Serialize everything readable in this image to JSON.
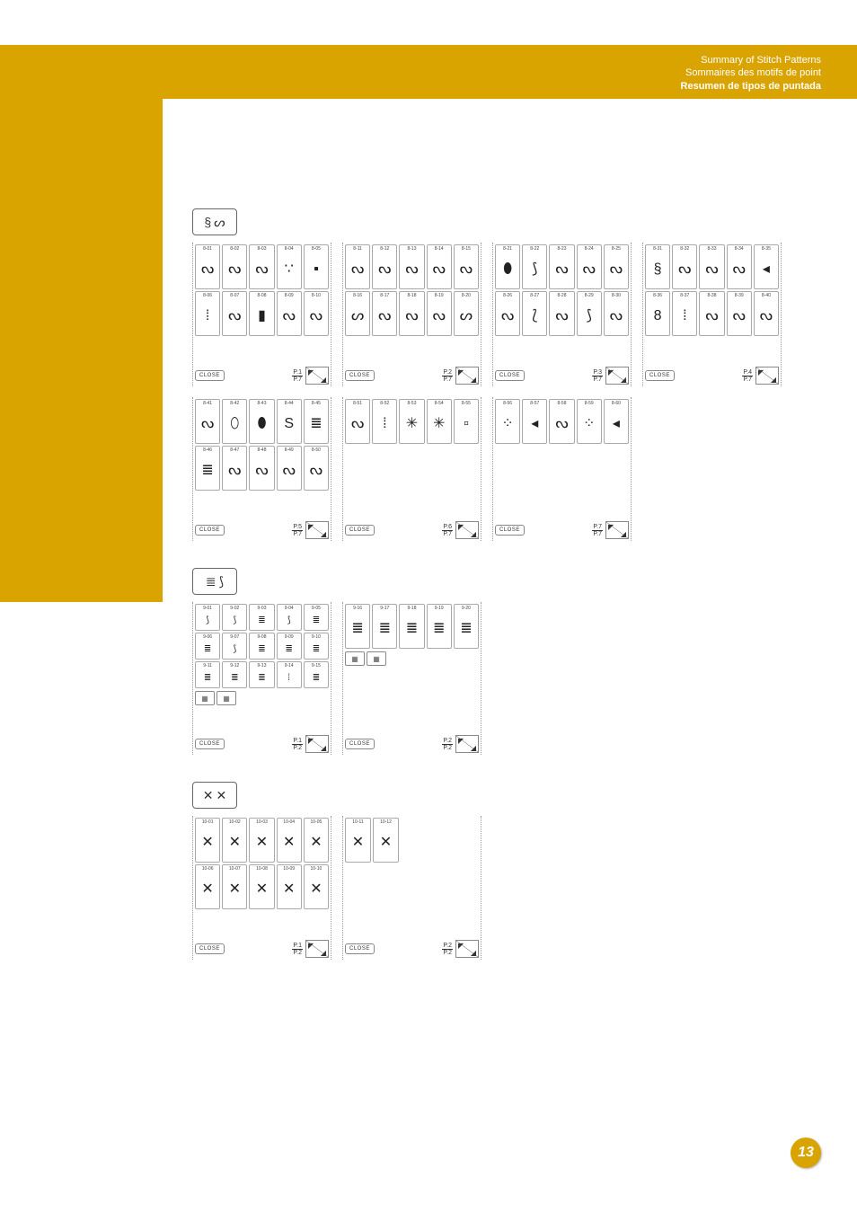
{
  "header": {
    "line1": "Summary of Stitch Patterns",
    "line2": "Sommaires des motifs de point",
    "line3": "Resumen de tipos de puntada"
  },
  "close_label": "CLOSE",
  "page_number": "13",
  "sections": [
    {
      "category_glyphs": [
        "§",
        "ᔕ"
      ],
      "rows": [
        [
          {
            "grid": "c5r2",
            "cells": [
              {
                "id": "8-01",
                "g": "ᔓ"
              },
              {
                "id": "8-02",
                "g": "ᔓ"
              },
              {
                "id": "8-03",
                "g": "ᔓ"
              },
              {
                "id": "8-04",
                "g": "∵"
              },
              {
                "id": "8-05",
                "g": "▪"
              },
              {
                "id": "8-06",
                "g": "⁞"
              },
              {
                "id": "8-07",
                "g": "ᔓ"
              },
              {
                "id": "8-08",
                "g": "▮"
              },
              {
                "id": "8-09",
                "g": "ᔓ"
              },
              {
                "id": "8-10",
                "g": "ᔓ"
              }
            ],
            "page": "P.1",
            "total": "P.7"
          },
          {
            "grid": "c5r2",
            "cells": [
              {
                "id": "8-11",
                "g": "ᔓ"
              },
              {
                "id": "8-12",
                "g": "ᔓ"
              },
              {
                "id": "8-13",
                "g": "ᔓ"
              },
              {
                "id": "8-14",
                "g": "ᔓ"
              },
              {
                "id": "8-15",
                "g": "ᔓ"
              },
              {
                "id": "8-16",
                "g": "ᔕ"
              },
              {
                "id": "8-17",
                "g": "ᔓ"
              },
              {
                "id": "8-18",
                "g": "ᔓ"
              },
              {
                "id": "8-19",
                "g": "ᔓ"
              },
              {
                "id": "8-20",
                "g": "ᔕ"
              }
            ],
            "page": "P.2",
            "total": "P.7"
          },
          {
            "grid": "c5r2",
            "cells": [
              {
                "id": "8-21",
                "g": "⬮"
              },
              {
                "id": "8-22",
                "g": "⟆"
              },
              {
                "id": "8-23",
                "g": "ᔓ"
              },
              {
                "id": "8-24",
                "g": "ᔓ"
              },
              {
                "id": "8-25",
                "g": "ᔓ"
              },
              {
                "id": "8-26",
                "g": "ᔓ"
              },
              {
                "id": "8-27",
                "g": "⟅"
              },
              {
                "id": "8-28",
                "g": "ᔓ"
              },
              {
                "id": "8-29",
                "g": "⟆"
              },
              {
                "id": "8-30",
                "g": "ᔓ"
              }
            ],
            "page": "P.3",
            "total": "P.7"
          },
          {
            "grid": "c5r2",
            "cells": [
              {
                "id": "8-31",
                "g": "§"
              },
              {
                "id": "8-32",
                "g": "ᔓ"
              },
              {
                "id": "8-33",
                "g": "ᔓ"
              },
              {
                "id": "8-34",
                "g": "ᔓ"
              },
              {
                "id": "8-35",
                "g": "◂"
              },
              {
                "id": "8-36",
                "g": "8"
              },
              {
                "id": "8-37",
                "g": "⁞"
              },
              {
                "id": "8-38",
                "g": "ᔓ"
              },
              {
                "id": "8-39",
                "g": "ᔓ"
              },
              {
                "id": "8-40",
                "g": "ᔓ"
              }
            ],
            "page": "P.4",
            "total": "P.7"
          }
        ],
        [
          {
            "grid": "c5r2",
            "cells": [
              {
                "id": "8-41",
                "g": "ᔓ"
              },
              {
                "id": "8-42",
                "g": "⬯"
              },
              {
                "id": "8-43",
                "g": "⬮"
              },
              {
                "id": "8-44",
                "g": "S"
              },
              {
                "id": "8-45",
                "g": "≣"
              },
              {
                "id": "8-46",
                "g": "≣"
              },
              {
                "id": "8-47",
                "g": "ᔓ"
              },
              {
                "id": "8-48",
                "g": "ᔓ"
              },
              {
                "id": "8-49",
                "g": "ᔓ"
              },
              {
                "id": "8-50",
                "g": "ᔓ"
              }
            ],
            "page": "P.5",
            "total": "P.7"
          },
          {
            "grid": "c5r1",
            "cells": [
              {
                "id": "8-51",
                "g": "ᔓ"
              },
              {
                "id": "8-52",
                "g": "⁞"
              },
              {
                "id": "8-53",
                "g": "✳"
              },
              {
                "id": "8-54",
                "g": "✳"
              },
              {
                "id": "8-55",
                "g": "▫"
              }
            ],
            "page": "P.6",
            "total": "P.7"
          },
          {
            "grid": "c5r1",
            "cells": [
              {
                "id": "8-56",
                "g": "⁘"
              },
              {
                "id": "8-57",
                "g": "◂"
              },
              {
                "id": "8-58",
                "g": "ᔓ"
              },
              {
                "id": "8-59",
                "g": "⁘"
              },
              {
                "id": "8-60",
                "g": "◂"
              }
            ],
            "page": "P.7",
            "total": "P.7"
          }
        ]
      ]
    },
    {
      "category_glyphs": [
        "≣",
        "⟆"
      ],
      "rows": [
        [
          {
            "grid": "c5r3",
            "tall": true,
            "extra_icons": true,
            "cells": [
              {
                "id": "9-01",
                "g": "⟆"
              },
              {
                "id": "9-02",
                "g": "⟆"
              },
              {
                "id": "9-03",
                "g": "≣"
              },
              {
                "id": "9-04",
                "g": "⟆"
              },
              {
                "id": "9-05",
                "g": "≣"
              },
              {
                "id": "9-06",
                "g": "≣"
              },
              {
                "id": "9-07",
                "g": "⟆"
              },
              {
                "id": "9-08",
                "g": "≣"
              },
              {
                "id": "9-09",
                "g": "≣"
              },
              {
                "id": "9-10",
                "g": "≣"
              },
              {
                "id": "9-11",
                "g": "≣"
              },
              {
                "id": "9-12",
                "g": "≣"
              },
              {
                "id": "9-13",
                "g": "≣"
              },
              {
                "id": "9-14",
                "g": "⁞"
              },
              {
                "id": "9-15",
                "g": "≣"
              }
            ],
            "page": "P.1",
            "total": "P.2"
          },
          {
            "grid": "c5r1",
            "tall": true,
            "extra_icons": true,
            "cells": [
              {
                "id": "9-16",
                "g": "≣"
              },
              {
                "id": "9-17",
                "g": "≣"
              },
              {
                "id": "9-18",
                "g": "≣"
              },
              {
                "id": "9-19",
                "g": "≣"
              },
              {
                "id": "9-20",
                "g": "≣"
              }
            ],
            "page": "P.2",
            "total": "P.2"
          }
        ]
      ]
    },
    {
      "category_glyphs": [
        "✕",
        "✕"
      ],
      "rows": [
        [
          {
            "grid": "c5r2",
            "cells": [
              {
                "id": "10-01",
                "g": "✕"
              },
              {
                "id": "10-02",
                "g": "✕"
              },
              {
                "id": "10-03",
                "g": "✕"
              },
              {
                "id": "10-04",
                "g": "✕"
              },
              {
                "id": "10-05",
                "g": "✕"
              },
              {
                "id": "10-06",
                "g": "✕"
              },
              {
                "id": "10-07",
                "g": "✕"
              },
              {
                "id": "10-08",
                "g": "✕"
              },
              {
                "id": "10-09",
                "g": "✕"
              },
              {
                "id": "10-10",
                "g": "✕"
              }
            ],
            "page": "P.1",
            "total": "P.2"
          },
          {
            "grid": "c2r1",
            "cells": [
              {
                "id": "10-11",
                "g": "✕"
              },
              {
                "id": "10-12",
                "g": "✕"
              }
            ],
            "page": "P.2",
            "total": "P.2"
          }
        ]
      ]
    }
  ]
}
